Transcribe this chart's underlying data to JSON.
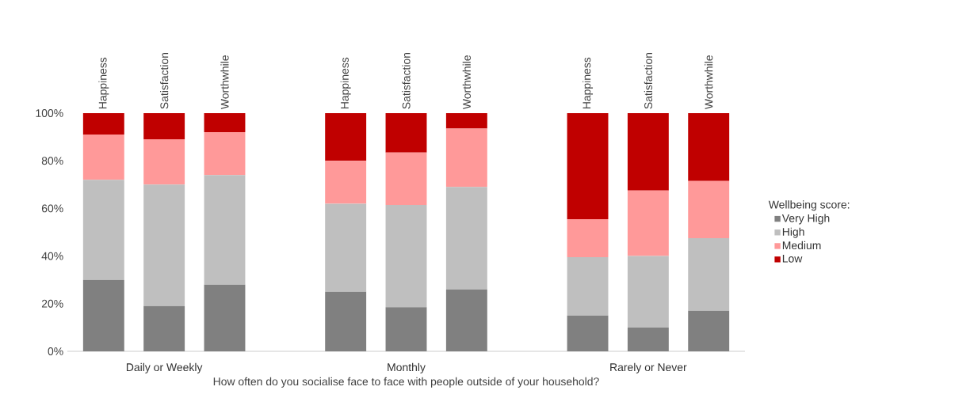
{
  "chart_data": {
    "type": "bar",
    "stacked": true,
    "xlabel": "How often do you socialise face to face with people outside of your household?",
    "legend_title": "Wellbeing score:",
    "legend": "right",
    "categories": [
      "Happiness",
      "Satisfaction",
      "Worthwhile",
      null,
      "Happiness",
      "Satisfaction",
      "Worthwhile",
      null,
      "Happiness",
      "Satisfaction",
      "Worthwhile"
    ],
    "annotations": [
      "Daily or Weekly",
      "Monthly",
      "Rarely or Never"
    ],
    "ylim": [
      0,
      100
    ],
    "yticks": [
      {
        "value": 0,
        "label": "0%"
      },
      {
        "value": 20,
        "label": "20%"
      },
      {
        "value": 40,
        "label": "40%"
      },
      {
        "value": 60,
        "label": "60%"
      },
      {
        "value": 80,
        "label": "80%"
      },
      {
        "value": 100,
        "label": "100%"
      }
    ],
    "series": [
      {
        "name": "Very High",
        "color": "#808080",
        "values": [
          30,
          19,
          28,
          null,
          25,
          18.5,
          26,
          null,
          15,
          10,
          17
        ]
      },
      {
        "name": "High",
        "color": "#bfbfbf",
        "values": [
          42,
          51,
          46,
          null,
          37,
          43,
          43,
          null,
          24.5,
          30,
          30.5
        ]
      },
      {
        "name": "Medium",
        "color": "#ff9999",
        "values": [
          19,
          19,
          18,
          null,
          18,
          22,
          24.5,
          null,
          16,
          27.5,
          24
        ]
      },
      {
        "name": "Low",
        "color": "#c00000",
        "values": [
          9,
          11,
          8,
          null,
          20,
          16.5,
          6.5,
          null,
          44.5,
          32.5,
          28.5
        ]
      }
    ]
  }
}
